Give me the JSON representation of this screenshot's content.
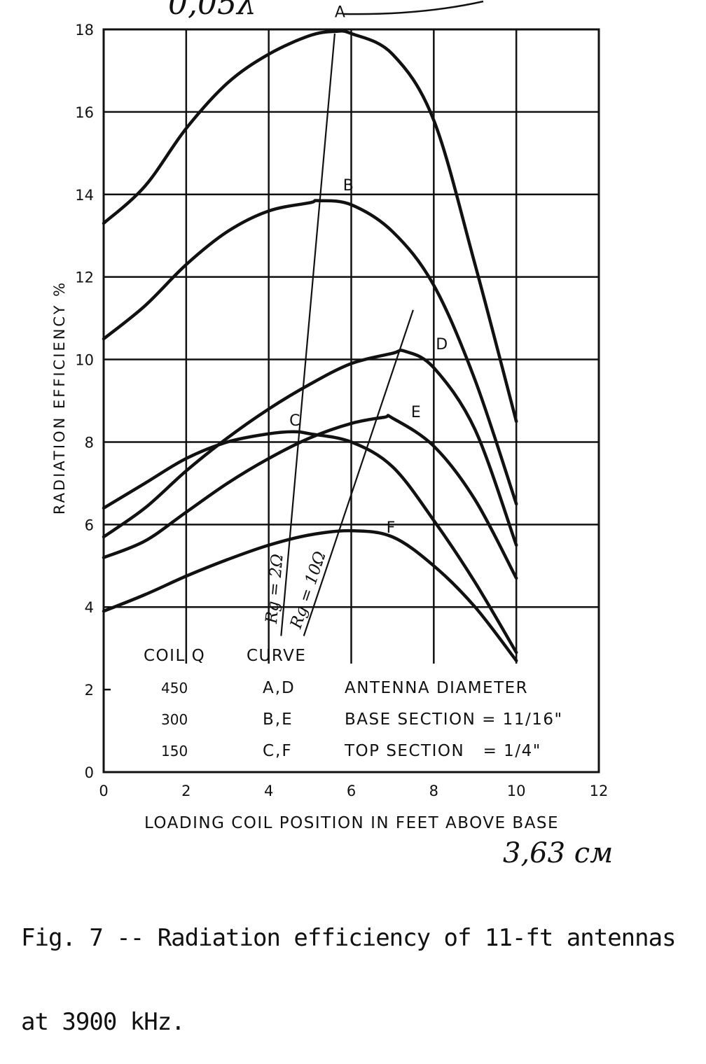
{
  "chart_data": {
    "type": "line",
    "xlabel": "LOADING COIL POSITION IN FEET ABOVE BASE",
    "ylabel": "RADIATION EFFICIENCY %",
    "xlim": [
      0,
      12
    ],
    "ylim": [
      0,
      18
    ],
    "xticks": [
      "0",
      "2",
      "4",
      "6",
      "8",
      "10",
      "12"
    ],
    "yticks": [
      "0",
      "2",
      "4",
      "6",
      "8",
      "10",
      "12",
      "14",
      "16",
      "18"
    ],
    "grid": true,
    "series": [
      {
        "name": "A",
        "x": [
          0,
          1,
          2,
          3,
          4,
          5,
          5.6,
          6,
          7,
          8,
          9,
          10
        ],
        "y": [
          13.3,
          14.2,
          15.6,
          16.7,
          17.4,
          17.85,
          17.95,
          17.9,
          17.4,
          15.8,
          12.3,
          8.5
        ]
      },
      {
        "name": "B",
        "x": [
          0,
          1,
          2,
          3,
          4,
          5,
          5.2,
          6,
          7,
          8,
          9,
          10
        ],
        "y": [
          10.5,
          11.3,
          12.3,
          13.1,
          13.6,
          13.8,
          13.85,
          13.75,
          13.1,
          11.8,
          9.5,
          6.5
        ]
      },
      {
        "name": "C",
        "x": [
          0,
          1,
          2,
          3,
          4,
          4.6,
          5,
          6,
          7,
          8,
          9,
          10
        ],
        "y": [
          6.4,
          7.0,
          7.6,
          8.0,
          8.2,
          8.25,
          8.2,
          8.0,
          7.4,
          6.1,
          4.6,
          2.9
        ]
      },
      {
        "name": "D",
        "x": [
          0,
          1,
          2,
          3,
          4,
          5,
          6,
          7,
          7.3,
          8,
          9,
          10
        ],
        "y": [
          5.7,
          6.4,
          7.3,
          8.1,
          8.8,
          9.4,
          9.9,
          10.15,
          10.2,
          9.8,
          8.3,
          5.5
        ]
      },
      {
        "name": "E",
        "x": [
          0,
          1,
          2,
          3,
          4,
          5,
          6,
          6.8,
          7,
          8,
          9,
          10
        ],
        "y": [
          5.2,
          5.6,
          6.3,
          7.0,
          7.6,
          8.1,
          8.45,
          8.6,
          8.58,
          7.9,
          6.6,
          4.7
        ]
      },
      {
        "name": "F",
        "x": [
          0,
          1,
          2,
          3,
          4,
          5,
          6,
          7,
          8,
          9,
          10
        ],
        "y": [
          3.9,
          4.3,
          4.75,
          5.15,
          5.5,
          5.75,
          5.85,
          5.7,
          5.0,
          4.0,
          2.7
        ]
      }
    ],
    "reference_lines": [
      {
        "label": "Rg = 2Ω",
        "x": [
          4.3,
          5.6
        ],
        "y": [
          3.3,
          17.9
        ]
      },
      {
        "label": "Rg = 10Ω",
        "x": [
          4.85,
          7.5
        ],
        "y": [
          3.3,
          11.2
        ]
      }
    ],
    "legend_table": {
      "headers": [
        "COIL Q",
        "CURVE"
      ],
      "rows": [
        {
          "q": "450",
          "curve": "A,D",
          "note": "ANTENNA DIAMETER"
        },
        {
          "q": "300",
          "curve": "B,E",
          "note": "BASE SECTION = 11/16\""
        },
        {
          "q": "150",
          "curve": "C,F",
          "note": "TOP SECTION   = 1/4\""
        }
      ]
    },
    "handwritten": {
      "top": "0,05λ",
      "bottom": "3,63 см"
    }
  },
  "caption": {
    "line1": "Fig. 7 -- Radiation efficiency of 11-ft antennas",
    "line2": "at 3900 kHz."
  },
  "colors": {
    "ink": "#111111",
    "paper": "#ffffff"
  }
}
